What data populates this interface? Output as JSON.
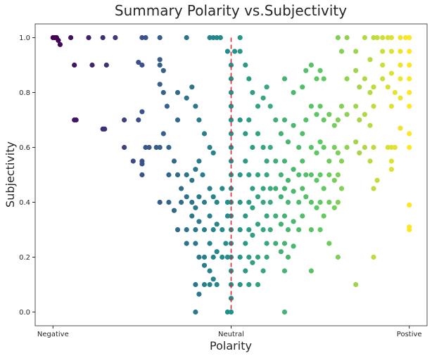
{
  "chart_data": {
    "type": "scatter",
    "title": "Summary Polarity vs.Subjectivity",
    "xlabel": "Polarity",
    "ylabel": "Subjectivity",
    "xlim": [
      -1.1,
      1.1
    ],
    "ylim": [
      -0.05,
      1.05
    ],
    "xticks": [
      {
        "value": -1,
        "label": "Negative"
      },
      {
        "value": 0,
        "label": "Neutral"
      },
      {
        "value": 1,
        "label": "Postive"
      }
    ],
    "yticks": [
      {
        "value": 0.0,
        "label": "0.0"
      },
      {
        "value": 0.2,
        "label": "0.2"
      },
      {
        "value": 0.4,
        "label": "0.4"
      },
      {
        "value": 0.6,
        "label": "0.6"
      },
      {
        "value": 0.8,
        "label": "0.8"
      },
      {
        "value": 1.0,
        "label": "1.0"
      }
    ],
    "reference_line": {
      "x": 0,
      "style": "dashed",
      "color": "#e8242b"
    },
    "colormap": "viridis",
    "color_encodes": "polarity",
    "grid": false,
    "legend": "none",
    "points": [
      [
        -1.0,
        1.0
      ],
      [
        -0.99,
        1.0
      ],
      [
        -0.98,
        1.0
      ],
      [
        -0.97,
        0.99
      ],
      [
        -0.96,
        0.975
      ],
      [
        -0.9,
        1.0
      ],
      [
        -0.8,
        1.0
      ],
      [
        -0.72,
        1.0
      ],
      [
        -0.65,
        1.0
      ],
      [
        -0.5,
        1.0
      ],
      [
        -0.48,
        1.0
      ],
      [
        -0.4,
        1.0
      ],
      [
        -0.25,
        1.0
      ],
      [
        -0.12,
        1.0
      ],
      [
        -0.1,
        1.0
      ],
      [
        -0.08,
        1.0
      ],
      [
        -0.06,
        1.0
      ],
      [
        -0.88,
        0.9
      ],
      [
        -0.78,
        0.9
      ],
      [
        -0.7,
        0.9
      ],
      [
        -0.52,
        0.91
      ],
      [
        -0.5,
        0.9
      ],
      [
        -0.4,
        0.92
      ],
      [
        -0.4,
        0.9
      ],
      [
        -0.38,
        0.88
      ],
      [
        -0.88,
        0.7
      ],
      [
        -0.87,
        0.7
      ],
      [
        -0.72,
        0.667
      ],
      [
        -0.71,
        0.667
      ],
      [
        -0.6,
        0.7
      ],
      [
        -0.52,
        0.7
      ],
      [
        -0.5,
        0.73
      ],
      [
        -0.6,
        0.6
      ],
      [
        -0.55,
        0.55
      ],
      [
        -0.5,
        0.55
      ],
      [
        -0.5,
        0.54
      ],
      [
        -0.5,
        0.5
      ],
      [
        -0.48,
        0.6
      ],
      [
        -0.46,
        0.6
      ],
      [
        -0.42,
        0.6
      ],
      [
        -0.4,
        0.6
      ],
      [
        -0.38,
        0.65
      ],
      [
        -0.35,
        0.6
      ],
      [
        -0.32,
        0.55
      ],
      [
        -0.3,
        0.7
      ],
      [
        -0.4,
        0.83
      ],
      [
        -0.38,
        0.8
      ],
      [
        -0.36,
        0.75
      ],
      [
        -0.3,
        0.8
      ],
      [
        -0.25,
        0.78
      ],
      [
        -0.22,
        0.82
      ],
      [
        -0.2,
        0.75
      ],
      [
        -0.18,
        0.7
      ],
      [
        -0.15,
        0.65
      ],
      [
        -0.12,
        0.6
      ],
      [
        -0.1,
        0.58
      ],
      [
        -0.35,
        0.5
      ],
      [
        -0.3,
        0.5
      ],
      [
        -0.28,
        0.45
      ],
      [
        -0.25,
        0.5
      ],
      [
        -0.22,
        0.48
      ],
      [
        -0.2,
        0.52
      ],
      [
        -0.18,
        0.55
      ],
      [
        -0.16,
        0.5
      ],
      [
        -0.4,
        0.4
      ],
      [
        -0.35,
        0.4
      ],
      [
        -0.32,
        0.37
      ],
      [
        -0.28,
        0.4
      ],
      [
        -0.25,
        0.42
      ],
      [
        -0.22,
        0.4
      ],
      [
        -0.2,
        0.38
      ],
      [
        -0.18,
        0.42
      ],
      [
        -0.15,
        0.4
      ],
      [
        -0.12,
        0.45
      ],
      [
        -0.1,
        0.42
      ],
      [
        -0.08,
        0.4
      ],
      [
        -0.05,
        0.45
      ],
      [
        -0.02,
        0.4
      ],
      [
        -0.3,
        0.3
      ],
      [
        -0.25,
        0.3
      ],
      [
        -0.22,
        0.35
      ],
      [
        -0.2,
        0.3
      ],
      [
        -0.18,
        0.33
      ],
      [
        -0.15,
        0.3
      ],
      [
        -0.12,
        0.35
      ],
      [
        -0.1,
        0.3
      ],
      [
        -0.08,
        0.32
      ],
      [
        -0.05,
        0.3
      ],
      [
        -0.02,
        0.35
      ],
      [
        -0.25,
        0.25
      ],
      [
        -0.2,
        0.25
      ],
      [
        -0.18,
        0.2
      ],
      [
        -0.15,
        0.2
      ],
      [
        -0.12,
        0.25
      ],
      [
        -0.1,
        0.2
      ],
      [
        -0.08,
        0.22
      ],
      [
        -0.05,
        0.2
      ],
      [
        -0.03,
        0.25
      ],
      [
        -0.02,
        0.2
      ],
      [
        -0.15,
        0.17
      ],
      [
        -0.12,
        0.15
      ],
      [
        -0.2,
        0.1
      ],
      [
        -0.15,
        0.1
      ],
      [
        -0.12,
        0.1
      ],
      [
        -0.1,
        0.12
      ],
      [
        -0.08,
        0.1
      ],
      [
        -0.18,
        0.065
      ],
      [
        -0.2,
        0.0
      ],
      [
        -0.02,
        0.0
      ],
      [
        -0.02,
        0.95
      ],
      [
        0.02,
        0.95
      ],
      [
        0.05,
        0.95
      ],
      [
        0.0,
        0.9
      ],
      [
        0.0,
        0.85
      ],
      [
        0.0,
        0.8
      ],
      [
        0.0,
        0.75
      ],
      [
        0.0,
        0.7
      ],
      [
        0.0,
        0.65
      ],
      [
        0.0,
        0.6
      ],
      [
        0.0,
        0.55
      ],
      [
        0.0,
        0.5
      ],
      [
        0.0,
        0.45
      ],
      [
        0.0,
        0.4
      ],
      [
        0.0,
        0.35
      ],
      [
        0.0,
        0.3
      ],
      [
        0.0,
        0.25
      ],
      [
        0.0,
        0.2
      ],
      [
        0.0,
        0.15
      ],
      [
        0.0,
        0.1
      ],
      [
        0.0,
        0.05
      ],
      [
        0.0,
        0.0
      ],
      [
        0.05,
        1.0
      ],
      [
        0.08,
        0.9
      ],
      [
        0.1,
        0.85
      ],
      [
        0.12,
        0.8
      ],
      [
        0.15,
        0.75
      ],
      [
        0.18,
        0.78
      ],
      [
        0.2,
        0.82
      ],
      [
        0.22,
        0.75
      ],
      [
        0.05,
        0.7
      ],
      [
        0.08,
        0.65
      ],
      [
        0.1,
        0.7
      ],
      [
        0.12,
        0.6
      ],
      [
        0.15,
        0.65
      ],
      [
        0.18,
        0.6
      ],
      [
        0.2,
        0.55
      ],
      [
        0.22,
        0.6
      ],
      [
        0.05,
        0.5
      ],
      [
        0.08,
        0.55
      ],
      [
        0.1,
        0.5
      ],
      [
        0.12,
        0.45
      ],
      [
        0.15,
        0.5
      ],
      [
        0.18,
        0.45
      ],
      [
        0.2,
        0.5
      ],
      [
        0.22,
        0.45
      ],
      [
        0.05,
        0.4
      ],
      [
        0.08,
        0.35
      ],
      [
        0.1,
        0.4
      ],
      [
        0.12,
        0.38
      ],
      [
        0.15,
        0.42
      ],
      [
        0.18,
        0.4
      ],
      [
        0.2,
        0.35
      ],
      [
        0.22,
        0.4
      ],
      [
        0.05,
        0.3
      ],
      [
        0.08,
        0.25
      ],
      [
        0.1,
        0.3
      ],
      [
        0.12,
        0.28
      ],
      [
        0.15,
        0.32
      ],
      [
        0.18,
        0.3
      ],
      [
        0.2,
        0.25
      ],
      [
        0.22,
        0.3
      ],
      [
        0.05,
        0.2
      ],
      [
        0.08,
        0.15
      ],
      [
        0.1,
        0.2
      ],
      [
        0.12,
        0.18
      ],
      [
        0.15,
        0.2
      ],
      [
        0.18,
        0.15
      ],
      [
        0.2,
        0.2
      ],
      [
        0.05,
        0.1
      ],
      [
        0.1,
        0.1
      ],
      [
        0.15,
        0.1
      ],
      [
        0.3,
        0.0
      ],
      [
        0.25,
        0.7
      ],
      [
        0.28,
        0.65
      ],
      [
        0.3,
        0.7
      ],
      [
        0.32,
        0.62
      ],
      [
        0.35,
        0.68
      ],
      [
        0.38,
        0.6
      ],
      [
        0.4,
        0.65
      ],
      [
        0.42,
        0.7
      ],
      [
        0.25,
        0.55
      ],
      [
        0.28,
        0.5
      ],
      [
        0.3,
        0.55
      ],
      [
        0.32,
        0.48
      ],
      [
        0.35,
        0.52
      ],
      [
        0.38,
        0.5
      ],
      [
        0.4,
        0.55
      ],
      [
        0.42,
        0.5
      ],
      [
        0.25,
        0.45
      ],
      [
        0.28,
        0.42
      ],
      [
        0.3,
        0.45
      ],
      [
        0.32,
        0.4
      ],
      [
        0.35,
        0.44
      ],
      [
        0.38,
        0.4
      ],
      [
        0.4,
        0.45
      ],
      [
        0.42,
        0.42
      ],
      [
        0.25,
        0.35
      ],
      [
        0.28,
        0.32
      ],
      [
        0.3,
        0.35
      ],
      [
        0.32,
        0.3
      ],
      [
        0.35,
        0.33
      ],
      [
        0.38,
        0.3
      ],
      [
        0.4,
        0.35
      ],
      [
        0.25,
        0.25
      ],
      [
        0.28,
        0.22
      ],
      [
        0.3,
        0.25
      ],
      [
        0.32,
        0.2
      ],
      [
        0.35,
        0.24
      ],
      [
        0.3,
        0.15
      ],
      [
        0.3,
        0.85
      ],
      [
        0.35,
        0.8
      ],
      [
        0.4,
        0.82
      ],
      [
        0.42,
        0.88
      ],
      [
        0.45,
        0.9
      ],
      [
        0.48,
        0.85
      ],
      [
        0.5,
        0.88
      ],
      [
        0.52,
        0.85
      ],
      [
        0.45,
        0.75
      ],
      [
        0.48,
        0.72
      ],
      [
        0.5,
        0.75
      ],
      [
        0.52,
        0.7
      ],
      [
        0.55,
        0.72
      ],
      [
        0.58,
        0.68
      ],
      [
        0.6,
        0.7
      ],
      [
        0.62,
        0.75
      ],
      [
        0.45,
        0.6
      ],
      [
        0.48,
        0.58
      ],
      [
        0.5,
        0.62
      ],
      [
        0.52,
        0.6
      ],
      [
        0.55,
        0.55
      ],
      [
        0.58,
        0.6
      ],
      [
        0.6,
        0.58
      ],
      [
        0.62,
        0.55
      ],
      [
        0.45,
        0.5
      ],
      [
        0.48,
        0.48
      ],
      [
        0.5,
        0.5
      ],
      [
        0.52,
        0.45
      ],
      [
        0.55,
        0.5
      ],
      [
        0.58,
        0.48
      ],
      [
        0.6,
        0.5
      ],
      [
        0.62,
        0.45
      ],
      [
        0.45,
        0.4
      ],
      [
        0.48,
        0.38
      ],
      [
        0.5,
        0.4
      ],
      [
        0.52,
        0.35
      ],
      [
        0.55,
        0.4
      ],
      [
        0.58,
        0.38
      ],
      [
        0.6,
        0.4
      ],
      [
        0.45,
        0.3
      ],
      [
        0.5,
        0.3
      ],
      [
        0.55,
        0.25
      ],
      [
        0.45,
        0.15
      ],
      [
        0.6,
        0.2
      ],
      [
        0.7,
        0.1
      ],
      [
        0.8,
        0.2
      ],
      [
        0.6,
        1.0
      ],
      [
        0.62,
        0.95
      ],
      [
        0.65,
        1.0
      ],
      [
        0.7,
        0.95
      ],
      [
        0.75,
        1.0
      ],
      [
        0.78,
        0.92
      ],
      [
        0.8,
        1.0
      ],
      [
        0.65,
        0.85
      ],
      [
        0.7,
        0.88
      ],
      [
        0.72,
        0.82
      ],
      [
        0.75,
        0.85
      ],
      [
        0.78,
        0.8
      ],
      [
        0.8,
        0.82
      ],
      [
        0.65,
        0.72
      ],
      [
        0.7,
        0.75
      ],
      [
        0.72,
        0.7
      ],
      [
        0.75,
        0.72
      ],
      [
        0.78,
        0.68
      ],
      [
        0.8,
        0.75
      ],
      [
        0.65,
        0.6
      ],
      [
        0.7,
        0.62
      ],
      [
        0.72,
        0.58
      ],
      [
        0.75,
        0.6
      ],
      [
        0.78,
        0.55
      ],
      [
        0.8,
        0.6
      ],
      [
        0.82,
        1.0
      ],
      [
        0.85,
        1.0
      ],
      [
        0.88,
        1.0
      ],
      [
        0.9,
        1.0
      ],
      [
        0.95,
        1.0
      ],
      [
        0.98,
        1.0
      ],
      [
        1.0,
        1.0
      ],
      [
        0.85,
        0.95
      ],
      [
        0.9,
        0.95
      ],
      [
        0.95,
        0.95
      ],
      [
        1.0,
        0.95
      ],
      [
        0.85,
        0.9
      ],
      [
        0.9,
        0.87
      ],
      [
        0.95,
        0.9
      ],
      [
        1.0,
        0.9
      ],
      [
        0.85,
        0.85
      ],
      [
        0.88,
        0.82
      ],
      [
        0.92,
        0.8
      ],
      [
        0.95,
        0.85
      ],
      [
        1.0,
        0.85
      ],
      [
        0.9,
        0.75
      ],
      [
        0.95,
        0.78
      ],
      [
        1.0,
        0.75
      ],
      [
        1.0,
        0.8
      ],
      [
        0.88,
        0.6
      ],
      [
        0.9,
        0.6
      ],
      [
        0.92,
        0.6
      ],
      [
        0.95,
        0.67
      ],
      [
        1.0,
        0.65
      ],
      [
        1.0,
        0.6
      ],
      [
        0.9,
        0.52
      ],
      [
        0.82,
        0.48
      ],
      [
        0.8,
        0.45
      ],
      [
        0.9,
        0.55
      ],
      [
        1.0,
        0.39
      ],
      [
        1.0,
        0.3
      ],
      [
        1.0,
        0.31
      ]
    ]
  }
}
